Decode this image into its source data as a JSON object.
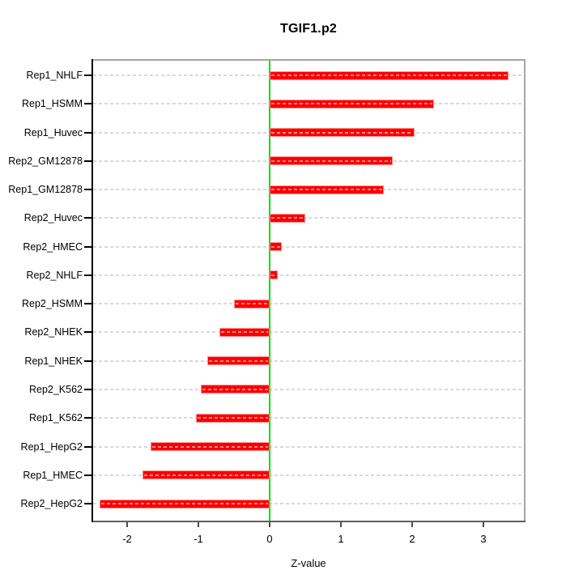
{
  "title": "TGIF1.p2",
  "axes": {
    "xlabel": "Z-value",
    "x_tick_labels": [
      "-2",
      "-1",
      "0",
      "1",
      "2",
      "3"
    ]
  },
  "chart_data": {
    "type": "bar",
    "orientation": "horizontal",
    "title": "TGIF1.p2",
    "xlabel": "Z-value",
    "ylabel": "",
    "categories": [
      "Rep1_NHLF",
      "Rep1_HSMM",
      "Rep1_Huvec",
      "Rep2_GM12878",
      "Rep1_GM12878",
      "Rep2_Huvec",
      "Rep2_HMEC",
      "Rep2_NHLF",
      "Rep2_HSMM",
      "Rep2_NHEK",
      "Rep1_NHEK",
      "Rep2_K562",
      "Rep1_K562",
      "Rep1_HepG2",
      "Rep1_HMEC",
      "Rep2_HepG2"
    ],
    "values": [
      3.35,
      2.31,
      2.03,
      1.73,
      1.6,
      0.5,
      0.17,
      0.11,
      -0.5,
      -0.7,
      -0.88,
      -0.97,
      -1.03,
      -1.67,
      -1.78,
      -2.39
    ],
    "xticks": [
      -2,
      -1,
      0,
      1,
      2,
      3
    ],
    "xlim": [
      -2.5,
      3.59
    ],
    "grid": "horizontal-dashed-per-row",
    "legend": "none",
    "colors": {
      "bar_fill": "#fb0000",
      "bar_border": "#ff9090",
      "zero_line": "#00dc00",
      "grid_line": "#d9d9d9",
      "box_border": "#a6a6a6",
      "x_axis_line": "#5f5f5f",
      "y_axis_line": "#000000"
    }
  }
}
